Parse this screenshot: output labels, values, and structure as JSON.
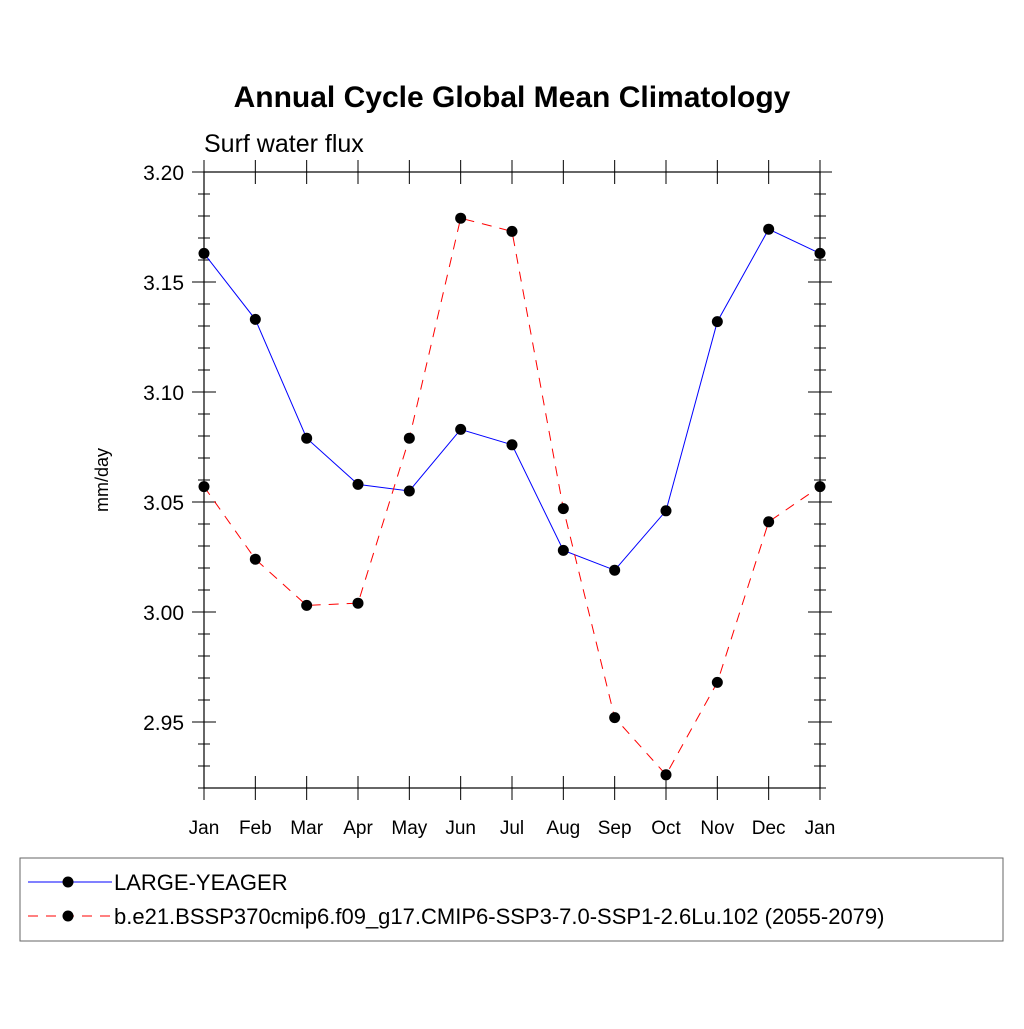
{
  "chart_data": {
    "type": "line",
    "title": "Annual Cycle Global Mean Climatology",
    "subtitle": "Surf water flux",
    "xlabel": "",
    "ylabel": "mm/day",
    "categories": [
      "Jan",
      "Feb",
      "Mar",
      "Apr",
      "May",
      "Jun",
      "Jul",
      "Aug",
      "Sep",
      "Oct",
      "Nov",
      "Dec",
      "Jan"
    ],
    "ylim": [
      2.92,
      3.2
    ],
    "yticks": [
      2.95,
      3.0,
      3.05,
      3.1,
      3.15,
      3.2
    ],
    "ytick_labels": [
      "2.95",
      "3.00",
      "3.05",
      "3.10",
      "3.15",
      "3.20"
    ],
    "yminor_step": 0.01,
    "grid": false,
    "legend_position": "bottom",
    "series": [
      {
        "name": "LARGE-YEAGER",
        "color": "#0000ff",
        "dash": "solid",
        "marker": "filled-circle",
        "values": [
          3.163,
          3.133,
          3.079,
          3.058,
          3.055,
          3.083,
          3.076,
          3.028,
          3.019,
          3.046,
          3.132,
          3.174,
          3.163
        ]
      },
      {
        "name": "b.e21.BSSP370cmip6.f09_g17.CMIP6-SSP3-7.0-SSP1-2.6Lu.102 (2055-2079)",
        "color": "#ff0000",
        "dash": "dashed",
        "marker": "filled-circle",
        "values": [
          3.057,
          3.024,
          3.003,
          3.004,
          3.079,
          3.179,
          3.173,
          3.047,
          2.952,
          2.926,
          2.968,
          3.041,
          3.057
        ]
      }
    ]
  }
}
